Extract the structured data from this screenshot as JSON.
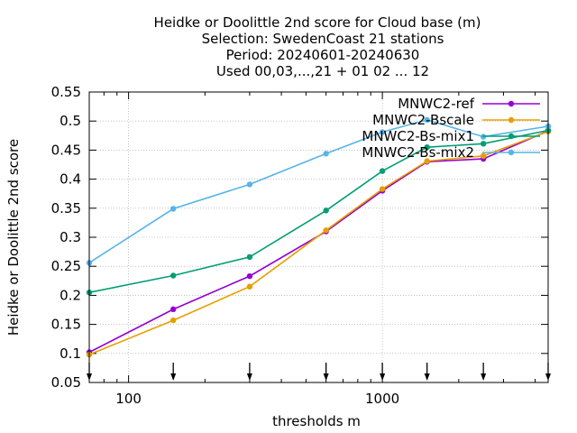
{
  "chart_data": {
    "type": "line",
    "title_lines": [
      "Heidke or Doolittle 2nd score  for Cloud base (m)",
      "Selection: SwedenCoast     21 stations",
      "Period: 20240601-20240630",
      "Used 00,03,...,21 + 01 02 ... 12"
    ],
    "xlabel": "thresholds m",
    "ylabel": "Heidke or Doolittle 2nd score",
    "x_scale": "log",
    "xlim": [
      70,
      4500
    ],
    "ylim": [
      0.05,
      0.55
    ],
    "x_ticks": [
      100,
      1000
    ],
    "x_tick_labels": [
      "100",
      "1000"
    ],
    "y_ticks": [
      0.05,
      0.1,
      0.15,
      0.2,
      0.25,
      0.3,
      0.35,
      0.4,
      0.45,
      0.5,
      0.55
    ],
    "y_tick_labels": [
      "0.05",
      "0.1",
      "0.15",
      "0.2",
      "0.25",
      "0.3",
      "0.35",
      "0.4",
      "0.45",
      "0.5",
      "0.55"
    ],
    "grid": true,
    "legend_position": "top-right",
    "threshold_markers": [
      70,
      150,
      300,
      600,
      1000,
      1500,
      2500,
      4500
    ],
    "x": [
      70,
      150,
      300,
      600,
      1000,
      1500,
      2500,
      4500
    ],
    "series": [
      {
        "name": "MNWC2-ref",
        "color": "#9400d3",
        "values": [
          0.102,
          0.176,
          0.233,
          0.31,
          0.38,
          0.43,
          0.435,
          0.483
        ]
      },
      {
        "name": "MNWC2-Bscale",
        "color": "#e69f00",
        "values": [
          0.098,
          0.157,
          0.215,
          0.312,
          0.383,
          0.431,
          0.44,
          0.482
        ]
      },
      {
        "name": "MNWC2-Bs-mix1",
        "color": "#009e73",
        "values": [
          0.205,
          0.234,
          0.266,
          0.346,
          0.414,
          0.455,
          0.461,
          0.484
        ]
      },
      {
        "name": "MNWC2-Bs-mix2",
        "color": "#56b4e9",
        "values": [
          0.256,
          0.349,
          0.391,
          0.444,
          0.481,
          0.502,
          0.473,
          0.491
        ]
      }
    ]
  }
}
